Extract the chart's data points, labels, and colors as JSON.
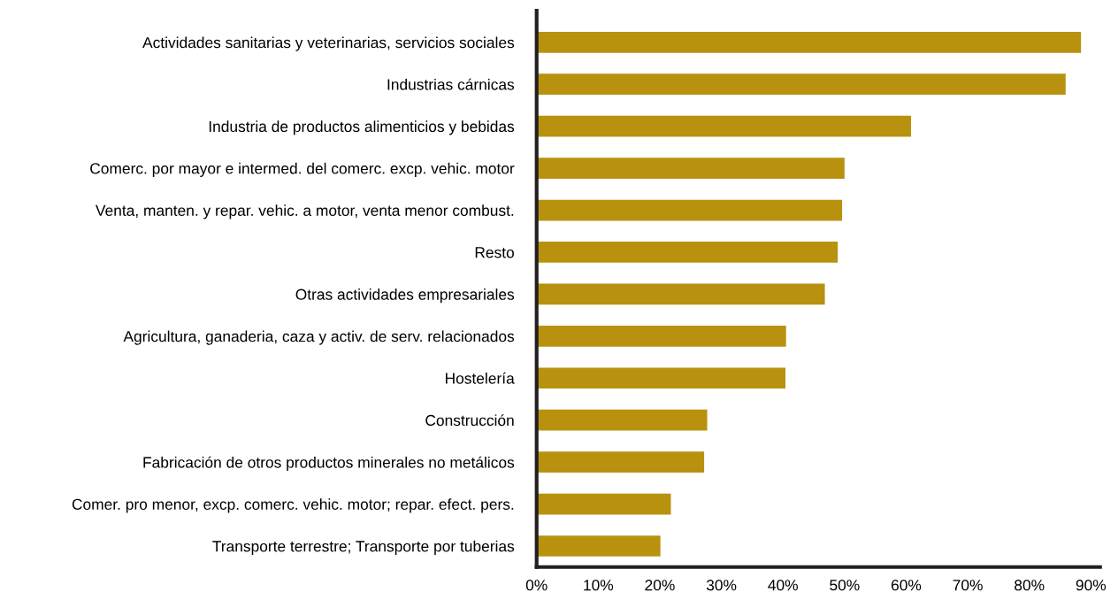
{
  "chart_data": {
    "type": "bar",
    "orientation": "horizontal",
    "categories": [
      "Actividades sanitarias y veterinarias, servicios sociales",
      "Industrias cárnicas",
      "Industria de productos alimenticios y bebidas",
      "Comerc. por mayor e intermed. del comerc. excp. vehic. motor",
      "Venta, manten. y repar. vehic. a motor, venta menor combust.",
      "Resto",
      "Otras actividades empresariales",
      "Agricultura, ganaderia, caza y activ. de serv. relacionados",
      "Hostelería",
      "Construcción",
      "Fabricación de otros productos minerales no metálicos",
      "Comer. pro menor, excp. comerc. vehic. motor; repar. efect. pers.",
      "Transporte terrestre; Transporte por tuberias"
    ],
    "values": [
      88.4,
      85.9,
      60.8,
      50.0,
      49.6,
      48.9,
      46.8,
      40.5,
      40.4,
      27.7,
      27.2,
      21.8,
      20.1
    ],
    "color": "#b8920f",
    "xlim": [
      0,
      91.5
    ],
    "xticks": [
      {
        "value": 0,
        "label": "0%"
      },
      {
        "value": 10,
        "label": "10%"
      },
      {
        "value": 20,
        "label": "20%"
      },
      {
        "value": 30,
        "label": "30%"
      },
      {
        "value": 40,
        "label": "40%"
      },
      {
        "value": 50,
        "label": "50%"
      },
      {
        "value": 60,
        "label": "60%"
      },
      {
        "value": 70,
        "label": "70%"
      },
      {
        "value": 80,
        "label": "80%"
      },
      {
        "value": 90,
        "label": "90%"
      }
    ],
    "grid": false,
    "legend": false
  }
}
